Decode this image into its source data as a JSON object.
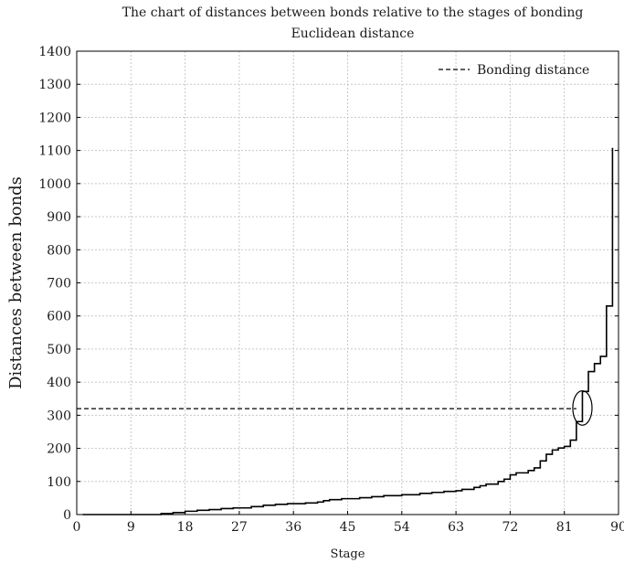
{
  "chart_data": {
    "type": "line",
    "title": "The chart of distances between bonds relative to the stages of bonding",
    "subtitle": "Euclidean distance",
    "xlabel": "Stage",
    "ylabel": "Distances between bonds",
    "xlim": [
      0,
      90
    ],
    "ylim": [
      0,
      1400
    ],
    "xticks": [
      0,
      9,
      18,
      27,
      36,
      45,
      54,
      63,
      72,
      81,
      90
    ],
    "yticks": [
      0,
      100,
      200,
      300,
      400,
      500,
      600,
      700,
      800,
      900,
      1000,
      1100,
      1200,
      1300,
      1400
    ],
    "grid": true,
    "legend_position": "top-right",
    "series": [
      {
        "kind": "step",
        "color": "#000000",
        "points": [
          [
            1,
            0
          ],
          [
            14,
            0
          ],
          [
            14,
            3
          ],
          [
            16,
            3
          ],
          [
            16,
            6
          ],
          [
            18,
            6
          ],
          [
            18,
            10
          ],
          [
            20,
            10
          ],
          [
            20,
            13
          ],
          [
            22,
            13
          ],
          [
            22,
            15
          ],
          [
            24,
            15
          ],
          [
            24,
            18
          ],
          [
            26,
            18
          ],
          [
            26,
            20
          ],
          [
            29,
            20
          ],
          [
            29,
            24
          ],
          [
            31,
            24
          ],
          [
            31,
            28
          ],
          [
            33,
            28
          ],
          [
            33,
            31
          ],
          [
            35,
            31
          ],
          [
            35,
            33
          ],
          [
            38,
            33
          ],
          [
            38,
            35
          ],
          [
            40,
            35
          ],
          [
            40,
            38
          ],
          [
            41,
            38
          ],
          [
            41,
            42
          ],
          [
            42,
            42
          ],
          [
            42,
            45
          ],
          [
            44,
            45
          ],
          [
            44,
            48
          ],
          [
            47,
            48
          ],
          [
            47,
            51
          ],
          [
            49,
            51
          ],
          [
            49,
            54
          ],
          [
            51,
            54
          ],
          [
            51,
            57
          ],
          [
            54,
            57
          ],
          [
            54,
            60
          ],
          [
            57,
            60
          ],
          [
            57,
            64
          ],
          [
            59,
            64
          ],
          [
            59,
            67
          ],
          [
            61,
            67
          ],
          [
            61,
            70
          ],
          [
            63,
            70
          ],
          [
            63,
            72
          ],
          [
            64,
            72
          ],
          [
            64,
            76
          ],
          [
            66,
            76
          ],
          [
            66,
            82
          ],
          [
            67,
            82
          ],
          [
            67,
            87
          ],
          [
            68,
            87
          ],
          [
            68,
            92
          ],
          [
            70,
            92
          ],
          [
            70,
            100
          ],
          [
            71,
            100
          ],
          [
            71,
            107
          ],
          [
            72,
            107
          ],
          [
            72,
            120
          ],
          [
            73,
            120
          ],
          [
            73,
            126
          ],
          [
            75,
            126
          ],
          [
            75,
            133
          ],
          [
            76,
            133
          ],
          [
            76,
            141
          ],
          [
            77,
            141
          ],
          [
            77,
            162
          ],
          [
            78,
            162
          ],
          [
            78,
            182
          ],
          [
            79,
            182
          ],
          [
            79,
            195
          ],
          [
            80,
            195
          ],
          [
            80,
            201
          ],
          [
            81,
            201
          ],
          [
            81,
            206
          ],
          [
            82,
            206
          ],
          [
            82,
            225
          ],
          [
            83,
            225
          ],
          [
            83,
            281
          ],
          [
            84,
            281
          ],
          [
            84,
            372
          ],
          [
            85,
            372
          ],
          [
            85,
            432
          ],
          [
            86,
            432
          ],
          [
            86,
            456
          ],
          [
            87,
            456
          ],
          [
            87,
            478
          ],
          [
            88,
            478
          ],
          [
            88,
            630
          ],
          [
            89,
            630
          ],
          [
            89,
            1108
          ]
        ]
      },
      {
        "name": "Bonding distance",
        "kind": "dashed",
        "color": "#000000",
        "points": [
          [
            0,
            320
          ],
          [
            83,
            320
          ]
        ]
      }
    ],
    "annotations": [
      {
        "kind": "ellipse",
        "cx": 84,
        "cy": 322,
        "rx": 1.6,
        "ry": 52
      }
    ]
  }
}
